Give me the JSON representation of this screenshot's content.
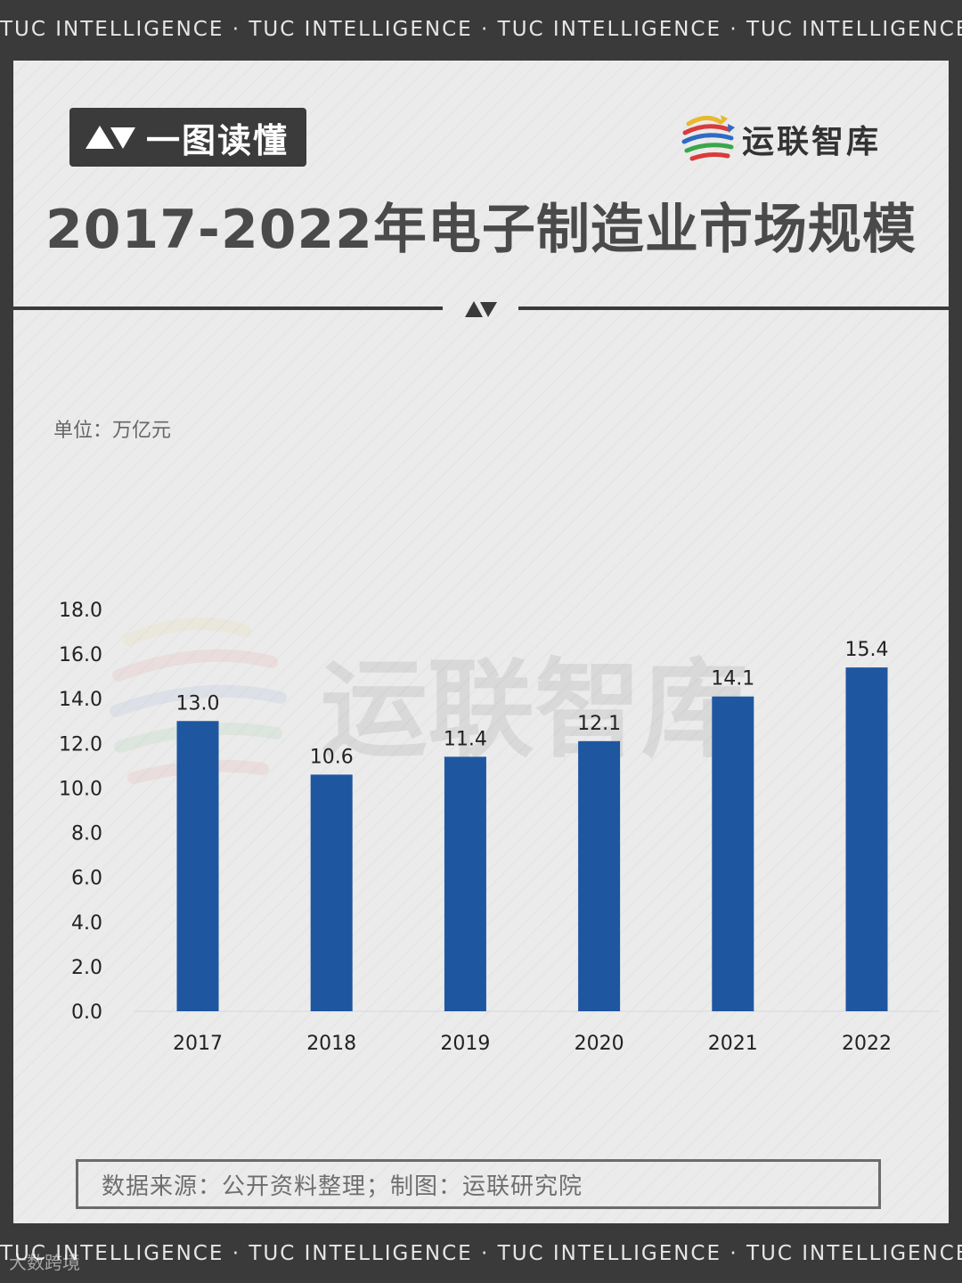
{
  "ticker": {
    "top": "TUC INTELLIGENCE · TUC INTELLIGENCE · TUC INTELLIGENCE · TUC INTELLIGENCE",
    "bottom": "TUC INTELLIGENCE · TUC INTELLIGENCE · TUC INTELLIGENCE · TUC INTELLIGENCE"
  },
  "corner_watermark": "大数跨境",
  "badge": {
    "label": "一图读懂"
  },
  "brand": {
    "name": "运联智库"
  },
  "title": "2017-2022年电子制造业市场规模",
  "unit_label": "单位：万亿元",
  "source_note": "数据来源：公开资料整理；制图：运联研究院",
  "colors": {
    "bar": "#1f56a0",
    "axis_text": "#222222",
    "panel": "#ebebeb",
    "frame": "#3a3a3a"
  },
  "chart_data": {
    "type": "bar",
    "title": "2017-2022年电子制造业市场规模",
    "categories": [
      "2017",
      "2018",
      "2019",
      "2020",
      "2021",
      "2022"
    ],
    "values": [
      13.0,
      10.6,
      11.4,
      12.1,
      14.1,
      15.4
    ],
    "value_labels": [
      "13.0",
      "10.6",
      "11.4",
      "12.1",
      "14.1",
      "15.4"
    ],
    "ylim": [
      0,
      18
    ],
    "yticks": [
      "0.0",
      "2.0",
      "4.0",
      "6.0",
      "8.0",
      "10.0",
      "12.0",
      "14.0",
      "16.0",
      "18.0"
    ],
    "ylabel": "单位：万亿元",
    "xlabel": "",
    "grid": false,
    "legend": "none"
  }
}
